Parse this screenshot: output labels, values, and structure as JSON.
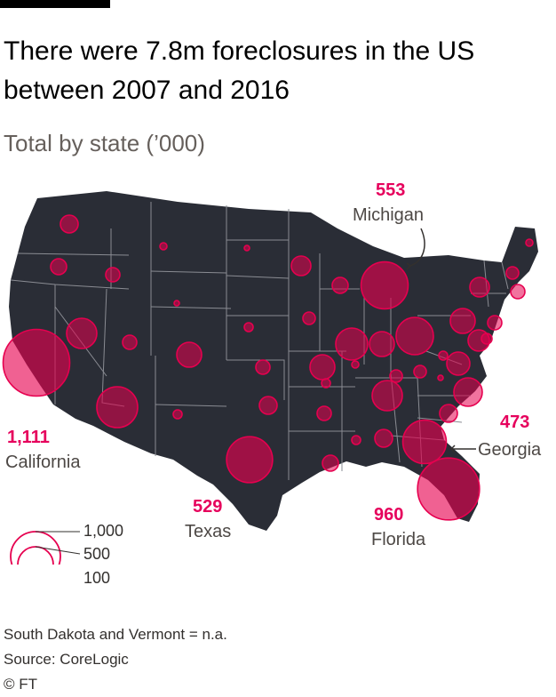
{
  "header": {
    "title": "There were 7.8m foreclosures in the US between 2007 and 2016",
    "subtitle": "Total by state (’000)"
  },
  "callouts": {
    "michigan": {
      "value": "553",
      "state": "Michigan"
    },
    "california": {
      "value": "1,111",
      "state": "California"
    },
    "texas": {
      "value": "529",
      "state": "Texas"
    },
    "georgia": {
      "value": "473",
      "state": "Georgia"
    },
    "florida": {
      "value": "960",
      "state": "Florida"
    }
  },
  "legend": {
    "large": "1,000",
    "medium": "500",
    "small": "100"
  },
  "footer": {
    "note": "South Dakota and Vermont = n.a.",
    "source": "Source: CoreLogic",
    "copyright": "© FT"
  },
  "colors": {
    "land": "#2a2d36",
    "border": "#8a8c93",
    "bubble": "#e6004f",
    "value_text": "#e6005c"
  },
  "chart_data": {
    "type": "bubble-map",
    "unit": "'000 foreclosures",
    "series": [
      {
        "state": "California",
        "value": 1111
      },
      {
        "state": "Florida",
        "value": 960
      },
      {
        "state": "Michigan",
        "value": 553
      },
      {
        "state": "Texas",
        "value": 529
      },
      {
        "state": "Georgia",
        "value": 473
      }
    ],
    "not_available": [
      "South Dakota",
      "Vermont"
    ]
  }
}
